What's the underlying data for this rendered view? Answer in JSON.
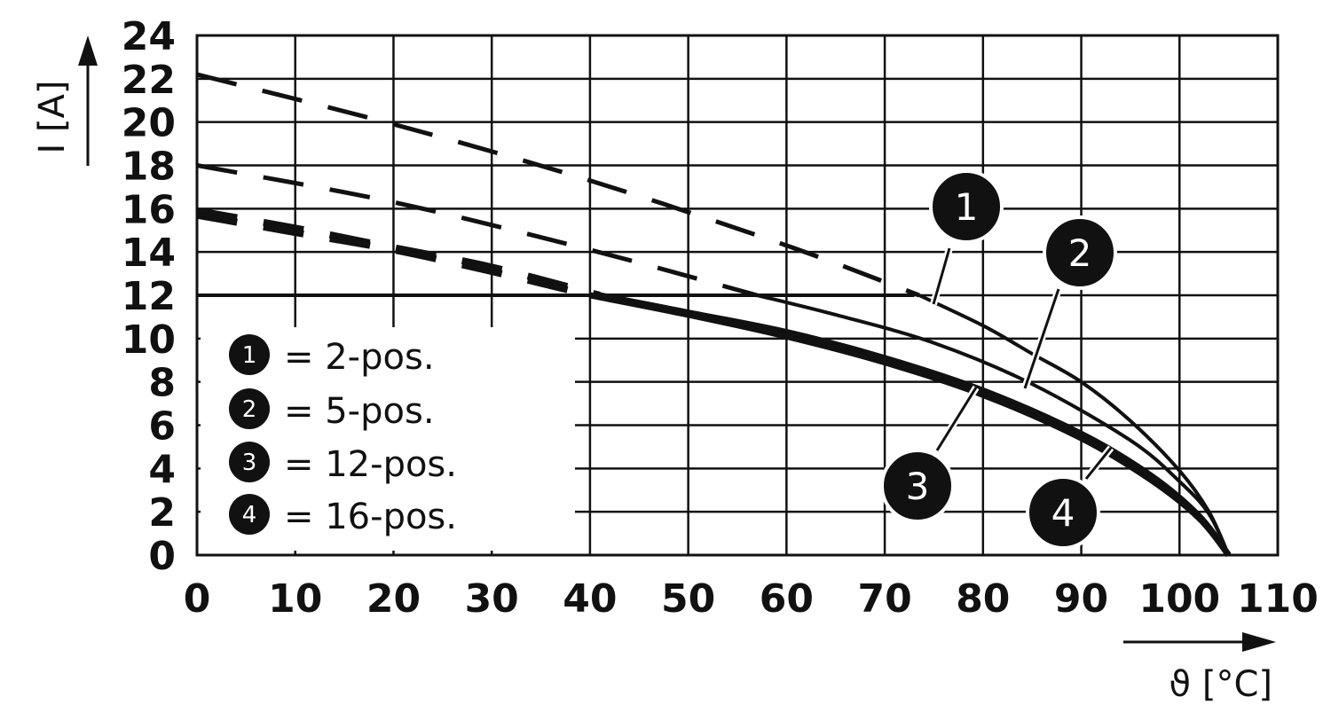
{
  "chart_data": {
    "type": "line",
    "xlabel": "ϑ [°C]",
    "ylabel": "I [A]",
    "xlim": [
      0,
      110
    ],
    "ylim": [
      0,
      24
    ],
    "x_ticks": [
      0,
      10,
      20,
      30,
      40,
      50,
      60,
      70,
      80,
      90,
      100,
      110
    ],
    "y_ticks": [
      0,
      2,
      4,
      6,
      8,
      10,
      12,
      14,
      16,
      18,
      20,
      22,
      24
    ],
    "grid": true,
    "legend_position": "lower-left",
    "limit_line": {
      "y": 12,
      "x_end": 73
    },
    "series": [
      {
        "name": "2-pos.",
        "id": "1",
        "dashed": {
          "x": [
            0,
            20,
            40,
            60,
            73.5
          ],
          "y": [
            22.2,
            19.9,
            17.3,
            14.3,
            12
          ]
        },
        "solid": {
          "x": [
            73.5,
            80,
            85,
            90,
            95,
            100,
            103,
            105
          ],
          "y": [
            12,
            10.6,
            9.3,
            8,
            6.2,
            3.9,
            2,
            0
          ]
        }
      },
      {
        "name": "5-pos.",
        "id": "2",
        "dashed": {
          "x": [
            0,
            20,
            40,
            57
          ],
          "y": [
            18,
            16.3,
            14.1,
            12
          ]
        },
        "solid": {
          "x": [
            57,
            65,
            75,
            85,
            95,
            100,
            103,
            105
          ],
          "y": [
            12,
            11.1,
            9.8,
            7.9,
            5.3,
            3.4,
            1.9,
            0
          ]
        }
      },
      {
        "name": "12-pos.",
        "id": "3",
        "dashed": {
          "x": [
            0,
            10,
            20,
            30,
            41
          ],
          "y": [
            15.9,
            15.1,
            14.2,
            13.3,
            12
          ]
        },
        "solid": {
          "x": [
            41,
            50,
            60,
            70,
            80,
            90,
            97,
            102,
            105
          ],
          "y": [
            12,
            11.2,
            10.3,
            9.1,
            7.6,
            5.6,
            3.7,
            1.8,
            0
          ]
        }
      },
      {
        "name": "16-pos.",
        "id": "4",
        "dashed": {
          "x": [
            0,
            10,
            20,
            30,
            40
          ],
          "y": [
            15.7,
            14.9,
            14.1,
            13.1,
            12
          ]
        },
        "solid": {
          "x": [
            40,
            50,
            60,
            70,
            80,
            90,
            97,
            102,
            105
          ],
          "y": [
            12,
            11.1,
            10.1,
            8.9,
            7.4,
            5.4,
            3.5,
            1.7,
            0
          ]
        }
      }
    ],
    "legend": [
      {
        "badge": "1",
        "text": "= 2-pos."
      },
      {
        "badge": "2",
        "text": "= 5-pos."
      },
      {
        "badge": "3",
        "text": "= 12-pos."
      },
      {
        "badge": "4",
        "text": "= 16-pos."
      }
    ],
    "callouts": [
      {
        "label": "1",
        "series": "1"
      },
      {
        "label": "2",
        "series": "2"
      },
      {
        "label": "3",
        "series": "3"
      },
      {
        "label": "4",
        "series": "4"
      }
    ]
  }
}
